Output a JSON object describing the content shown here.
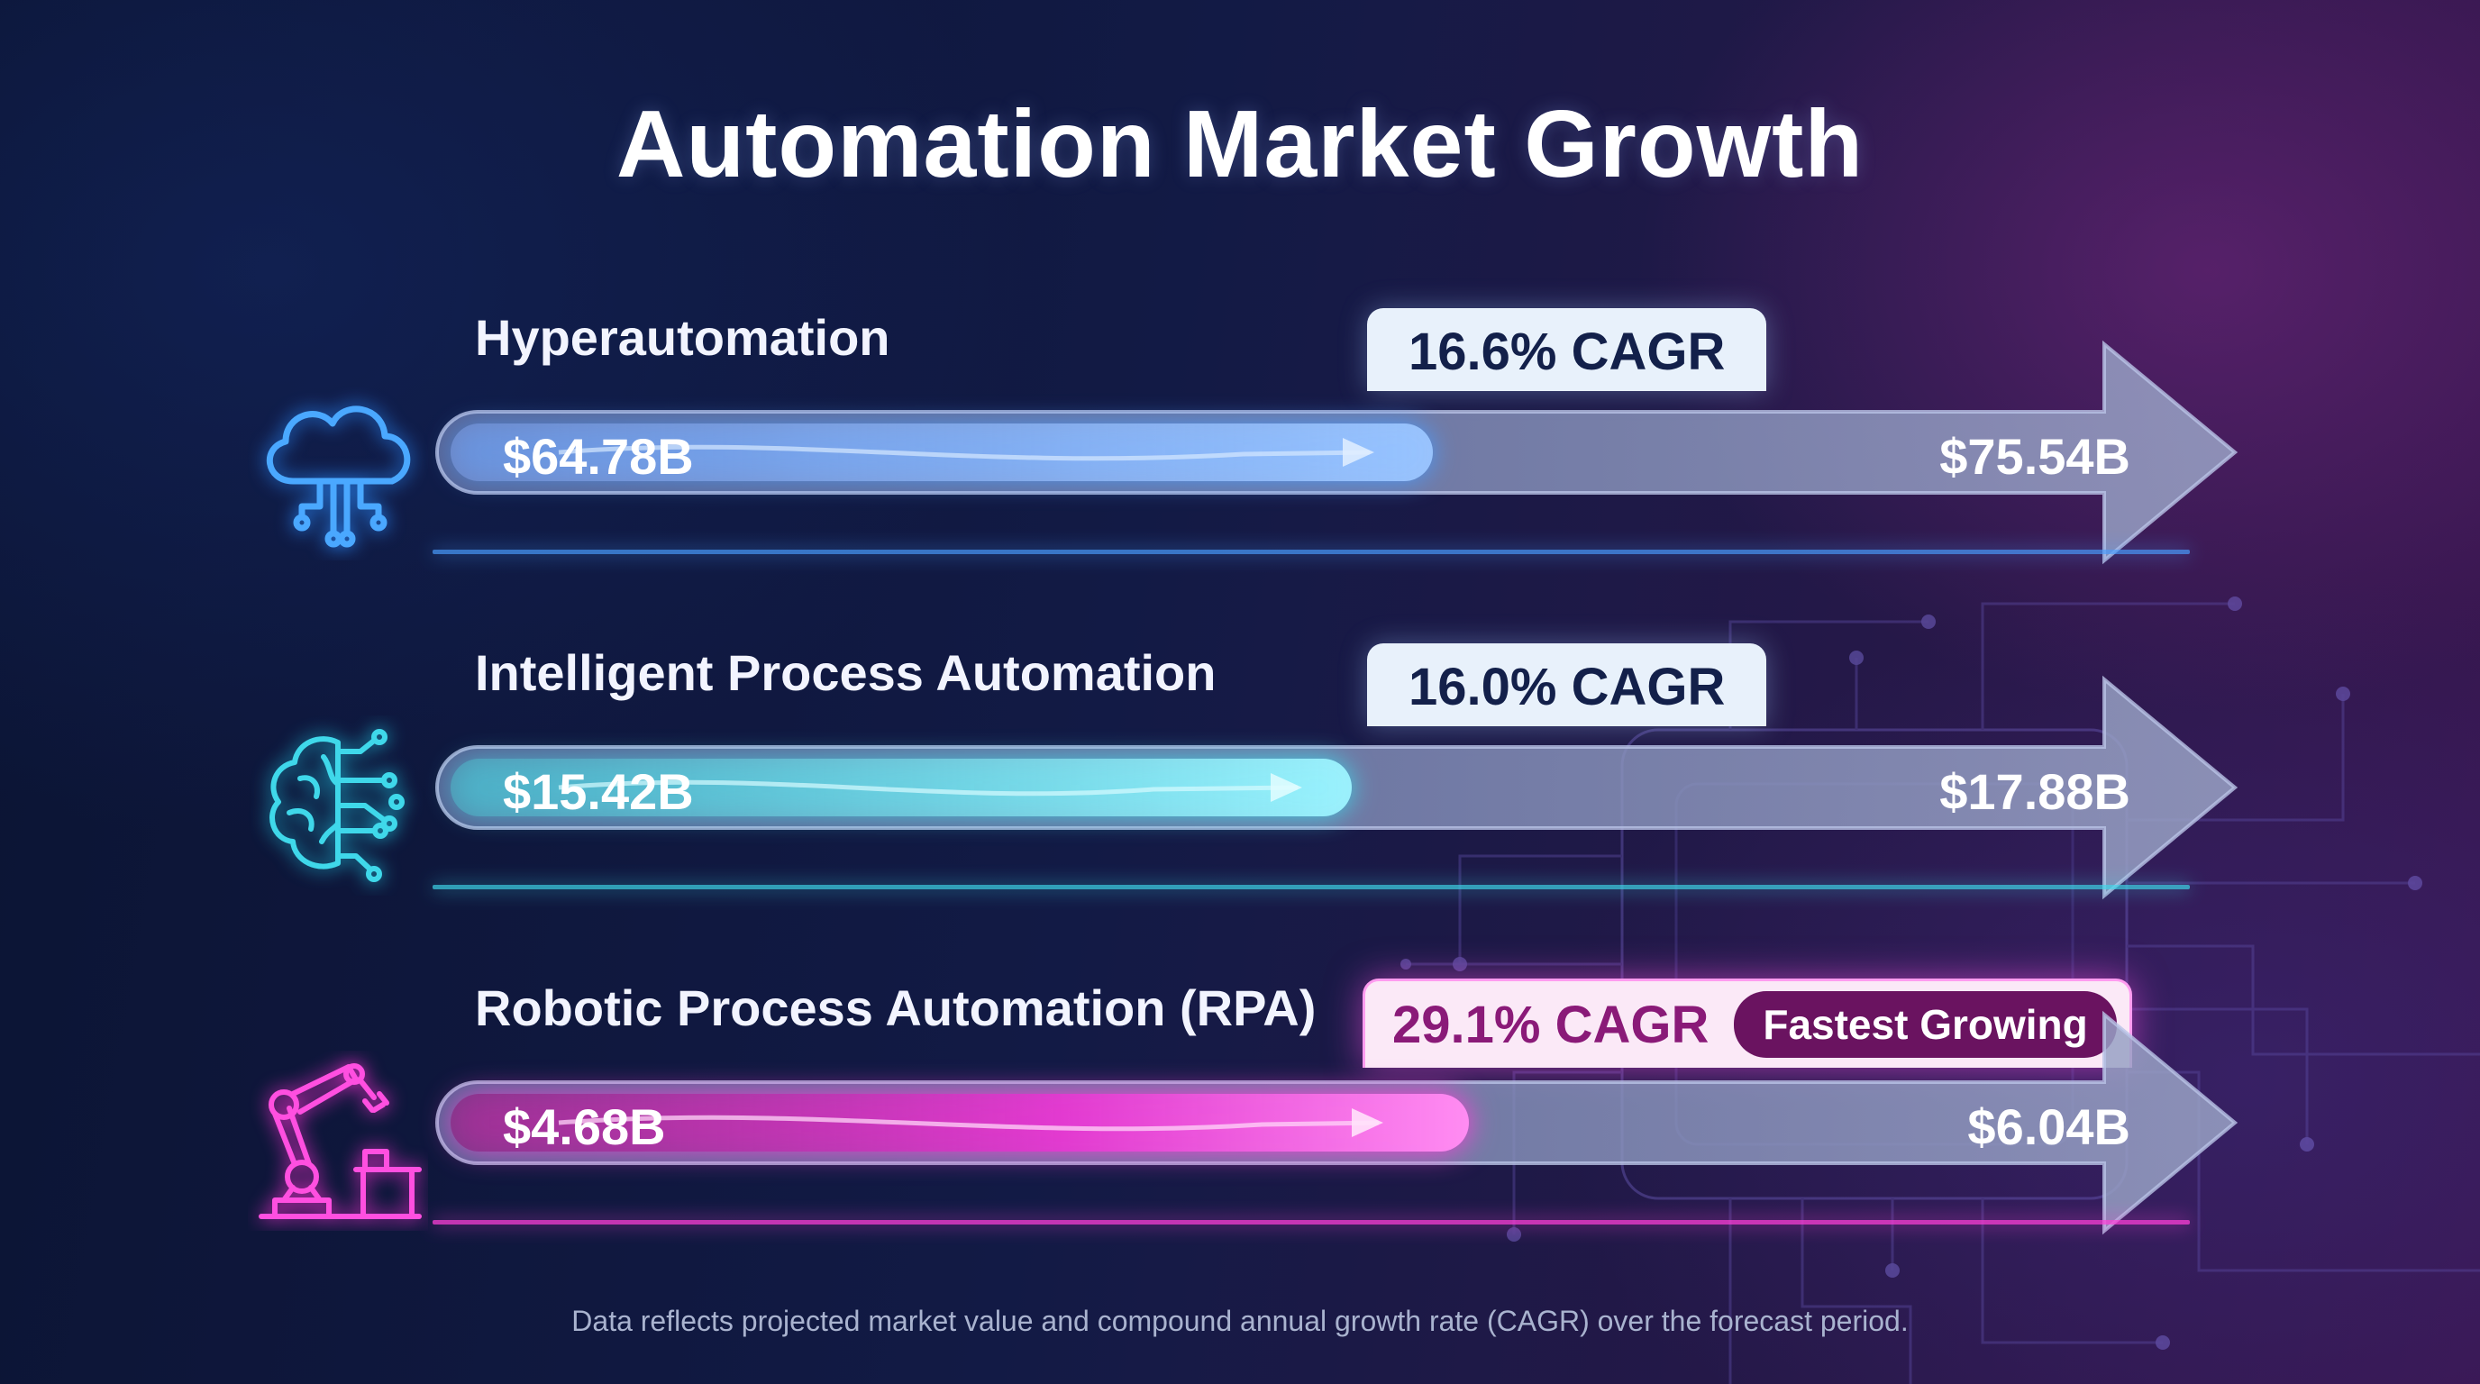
{
  "title": "Automation Market Growth",
  "footnote": "Data reflects projected market value and compound annual growth rate (CAGR) over the forecast period.",
  "chart_data": {
    "type": "bar",
    "title": "Automation Market Growth",
    "categories": [
      "Hyperautomation",
      "Intelligent Process Automation",
      "Robotic Process Automation (RPA)"
    ],
    "series": [
      {
        "name": "",
        "values": [
          64.78,
          15.42,
          4.68
        ]
      },
      {
        "name": "",
        "values": [
          75.54,
          17.88,
          6.04
        ]
      }
    ],
    "unit": "$B",
    "segments": [
      {
        "label": "Hyperautomation",
        "start_value": "$64.78B",
        "end_value": "$75.54B",
        "cagr": "16.6% CAGR",
        "cagr_pct": 16.6,
        "icon": "cloud-circuit-icon",
        "color": "#4a9dff"
      },
      {
        "label": "Intelligent Process Automation",
        "start_value": "$15.42B",
        "end_value": "$17.88B",
        "cagr": "16.0% CAGR",
        "cagr_pct": 16.0,
        "icon": "brain-circuit-icon",
        "color": "#3fd8ea"
      },
      {
        "label": "Robotic Process Automation (RPA)",
        "start_value": "$4.68B",
        "end_value": "$6.04B",
        "cagr": "29.1% CAGR",
        "cagr_pct": 29.1,
        "tag": "Fastest Growing",
        "icon": "robot-arm-icon",
        "color": "#ff3fd9"
      }
    ]
  }
}
